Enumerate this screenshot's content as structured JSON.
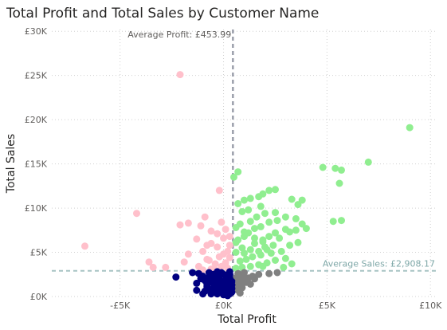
{
  "chart_data": {
    "type": "scatter",
    "title": "Total Profit and Total Sales by Customer Name",
    "xlabel": "Total Profit",
    "ylabel": "Total Sales",
    "xlim": [
      -8300,
      10300
    ],
    "ylim": [
      0,
      30200
    ],
    "x_ticks": [
      -5000,
      0,
      5000,
      10000
    ],
    "x_tick_labels": [
      "-£5K",
      "£0K",
      "£5K",
      "£10K"
    ],
    "y_ticks": [
      0,
      5000,
      10000,
      15000,
      20000,
      25000,
      30000
    ],
    "y_tick_labels": [
      "£0K",
      "£5K",
      "£10K",
      "£15K",
      "£20K",
      "£25K",
      "£30K"
    ],
    "grid": true,
    "reference_lines": {
      "profit_label": "Average Profit: £453.99",
      "profit_value": 453.99,
      "sales_label": "Average Sales: £2,908.17",
      "sales_value": 2908.17
    },
    "colors": {
      "high_profit_high_sales": "#90ee90",
      "low_profit_high_sales": "#ffc0cb",
      "high_profit_low_sales": "#808080",
      "low_profit_low_sales": "#000080",
      "axis_text": "#605e5c",
      "title": "#252423",
      "profit_line": "#9b9fab",
      "sales_line": "#a7c4c4"
    },
    "series": [
      {
        "color_key": "high_profit_high_sales",
        "points": [
          [
            9000,
            19100
          ],
          [
            7000,
            15200
          ],
          [
            4800,
            14600
          ],
          [
            5400,
            14500
          ],
          [
            5700,
            14300
          ],
          [
            5600,
            12800
          ],
          [
            5700,
            8600
          ],
          [
            5300,
            8500
          ],
          [
            3800,
            10900
          ],
          [
            3600,
            10400
          ],
          [
            3300,
            11000
          ],
          [
            2500,
            12100
          ],
          [
            2200,
            12000
          ],
          [
            1900,
            11600
          ],
          [
            1700,
            11300
          ],
          [
            1300,
            11100
          ],
          [
            1000,
            10900
          ],
          [
            700,
            10500
          ],
          [
            700,
            14100
          ],
          [
            500,
            13500
          ],
          [
            900,
            9600
          ],
          [
            1200,
            9800
          ],
          [
            1800,
            10200
          ],
          [
            2000,
            9400
          ],
          [
            2500,
            9500
          ],
          [
            3000,
            9000
          ],
          [
            3500,
            8800
          ],
          [
            3800,
            8200
          ],
          [
            4000,
            7700
          ],
          [
            3500,
            7500
          ],
          [
            3000,
            7600
          ],
          [
            2500,
            7200
          ],
          [
            2200,
            6800
          ],
          [
            1900,
            6400
          ],
          [
            1500,
            6000
          ],
          [
            2700,
            6600
          ],
          [
            3200,
            5800
          ],
          [
            3600,
            6100
          ],
          [
            2800,
            5100
          ],
          [
            2300,
            4900
          ],
          [
            1800,
            4700
          ],
          [
            1400,
            4500
          ],
          [
            3000,
            4300
          ],
          [
            2500,
            4100
          ],
          [
            2100,
            3800
          ],
          [
            1700,
            3600
          ],
          [
            1300,
            3400
          ],
          [
            900,
            3300
          ],
          [
            600,
            3200
          ],
          [
            3300,
            3700
          ],
          [
            2900,
            3300
          ],
          [
            700,
            6400
          ],
          [
            1000,
            7300
          ],
          [
            1300,
            8500
          ],
          [
            1600,
            9000
          ],
          [
            800,
            8200
          ],
          [
            600,
            7800
          ],
          [
            2600,
            8600
          ],
          [
            2200,
            8400
          ],
          [
            1800,
            7900
          ],
          [
            1500,
            7700
          ],
          [
            1200,
            7200
          ],
          [
            1000,
            6800
          ],
          [
            600,
            6100
          ],
          [
            900,
            5500
          ],
          [
            1300,
            5300
          ],
          [
            1700,
            5100
          ],
          [
            2000,
            5600
          ],
          [
            2400,
            5800
          ],
          [
            600,
            5000
          ],
          [
            1000,
            4900
          ],
          [
            3200,
            7300
          ],
          [
            1500,
            6600
          ],
          [
            1900,
            6200
          ],
          [
            2100,
            5300
          ],
          [
            1100,
            4200
          ],
          [
            800,
            4000
          ],
          [
            1900,
            3400
          ]
        ]
      },
      {
        "color_key": "low_profit_high_sales",
        "points": [
          [
            -2100,
            25100
          ],
          [
            -6700,
            5700
          ],
          [
            -4200,
            9400
          ],
          [
            -3600,
            3900
          ],
          [
            -3400,
            3300
          ],
          [
            -2800,
            3300
          ],
          [
            -2100,
            8100
          ],
          [
            -1700,
            8300
          ],
          [
            -900,
            9000
          ],
          [
            -1100,
            8000
          ],
          [
            -200,
            12000
          ],
          [
            -1300,
            6500
          ],
          [
            -1700,
            4800
          ],
          [
            -1900,
            3900
          ],
          [
            -600,
            7400
          ],
          [
            -1000,
            5100
          ],
          [
            -700,
            4100
          ],
          [
            -400,
            3700
          ],
          [
            -100,
            3400
          ],
          [
            200,
            3200
          ],
          [
            -300,
            5600
          ],
          [
            -600,
            6000
          ],
          [
            -300,
            7100
          ],
          [
            0,
            6600
          ],
          [
            300,
            5800
          ],
          [
            200,
            5100
          ],
          [
            0,
            4800
          ],
          [
            -200,
            4500
          ],
          [
            -800,
            4200
          ],
          [
            -1200,
            3400
          ],
          [
            100,
            7600
          ],
          [
            -100,
            8400
          ],
          [
            -600,
            3100
          ],
          [
            300,
            4400
          ],
          [
            -400,
            3000
          ],
          [
            -1000,
            3000
          ],
          [
            100,
            3800
          ],
          [
            -800,
            5800
          ],
          [
            300,
            6800
          ]
        ]
      },
      {
        "color_key": "high_profit_low_sales",
        "points": [
          [
            2600,
            2700
          ],
          [
            2200,
            2600
          ],
          [
            1700,
            2500
          ],
          [
            1400,
            2300
          ],
          [
            1200,
            2100
          ],
          [
            1000,
            1900
          ],
          [
            800,
            1700
          ],
          [
            700,
            1400
          ],
          [
            600,
            1100
          ],
          [
            700,
            700
          ],
          [
            800,
            400
          ],
          [
            900,
            1000
          ],
          [
            1300,
            1400
          ],
          [
            1100,
            1600
          ],
          [
            900,
            2300
          ],
          [
            600,
            2100
          ],
          [
            700,
            2600
          ],
          [
            1000,
            2700
          ],
          [
            1500,
            2000
          ],
          [
            800,
            1300
          ]
        ]
      },
      {
        "color_key": "low_profit_low_sales",
        "points": [
          [
            -2300,
            2200
          ],
          [
            -1300,
            1500
          ],
          [
            -1300,
            700
          ],
          [
            -1000,
            300
          ],
          [
            -700,
            2700
          ],
          [
            -500,
            2500
          ],
          [
            -300,
            2200
          ],
          [
            -200,
            1900
          ],
          [
            0,
            1700
          ],
          [
            200,
            1500
          ],
          [
            400,
            1300
          ],
          [
            -600,
            1600
          ],
          [
            -800,
            1300
          ],
          [
            -400,
            1100
          ],
          [
            -100,
            900
          ],
          [
            200,
            700
          ],
          [
            400,
            500
          ],
          [
            -300,
            300
          ],
          [
            0,
            200
          ],
          [
            200,
            100
          ],
          [
            -500,
            500
          ],
          [
            -700,
            800
          ],
          [
            -900,
            1800
          ],
          [
            -400,
            2000
          ],
          [
            100,
            2400
          ],
          [
            300,
            2100
          ],
          [
            -100,
            2700
          ],
          [
            300,
            2800
          ],
          [
            -1000,
            2300
          ],
          [
            -1500,
            2700
          ],
          [
            400,
            900
          ],
          [
            -200,
            1400
          ],
          [
            100,
            1100
          ],
          [
            -600,
            300
          ],
          [
            300,
            300
          ],
          [
            -900,
            600
          ],
          [
            -200,
            600
          ],
          [
            100,
            1900
          ],
          [
            -1100,
            2000
          ],
          [
            400,
            1700
          ],
          [
            -700,
            2200
          ],
          [
            -300,
            2800
          ],
          [
            0,
            2500
          ],
          [
            -1200,
            2600
          ],
          [
            -500,
            900
          ],
          [
            300,
            2500
          ],
          [
            -800,
            1100
          ],
          [
            0,
            600
          ],
          [
            -300,
            1600
          ],
          [
            200,
            900
          ]
        ]
      }
    ]
  }
}
